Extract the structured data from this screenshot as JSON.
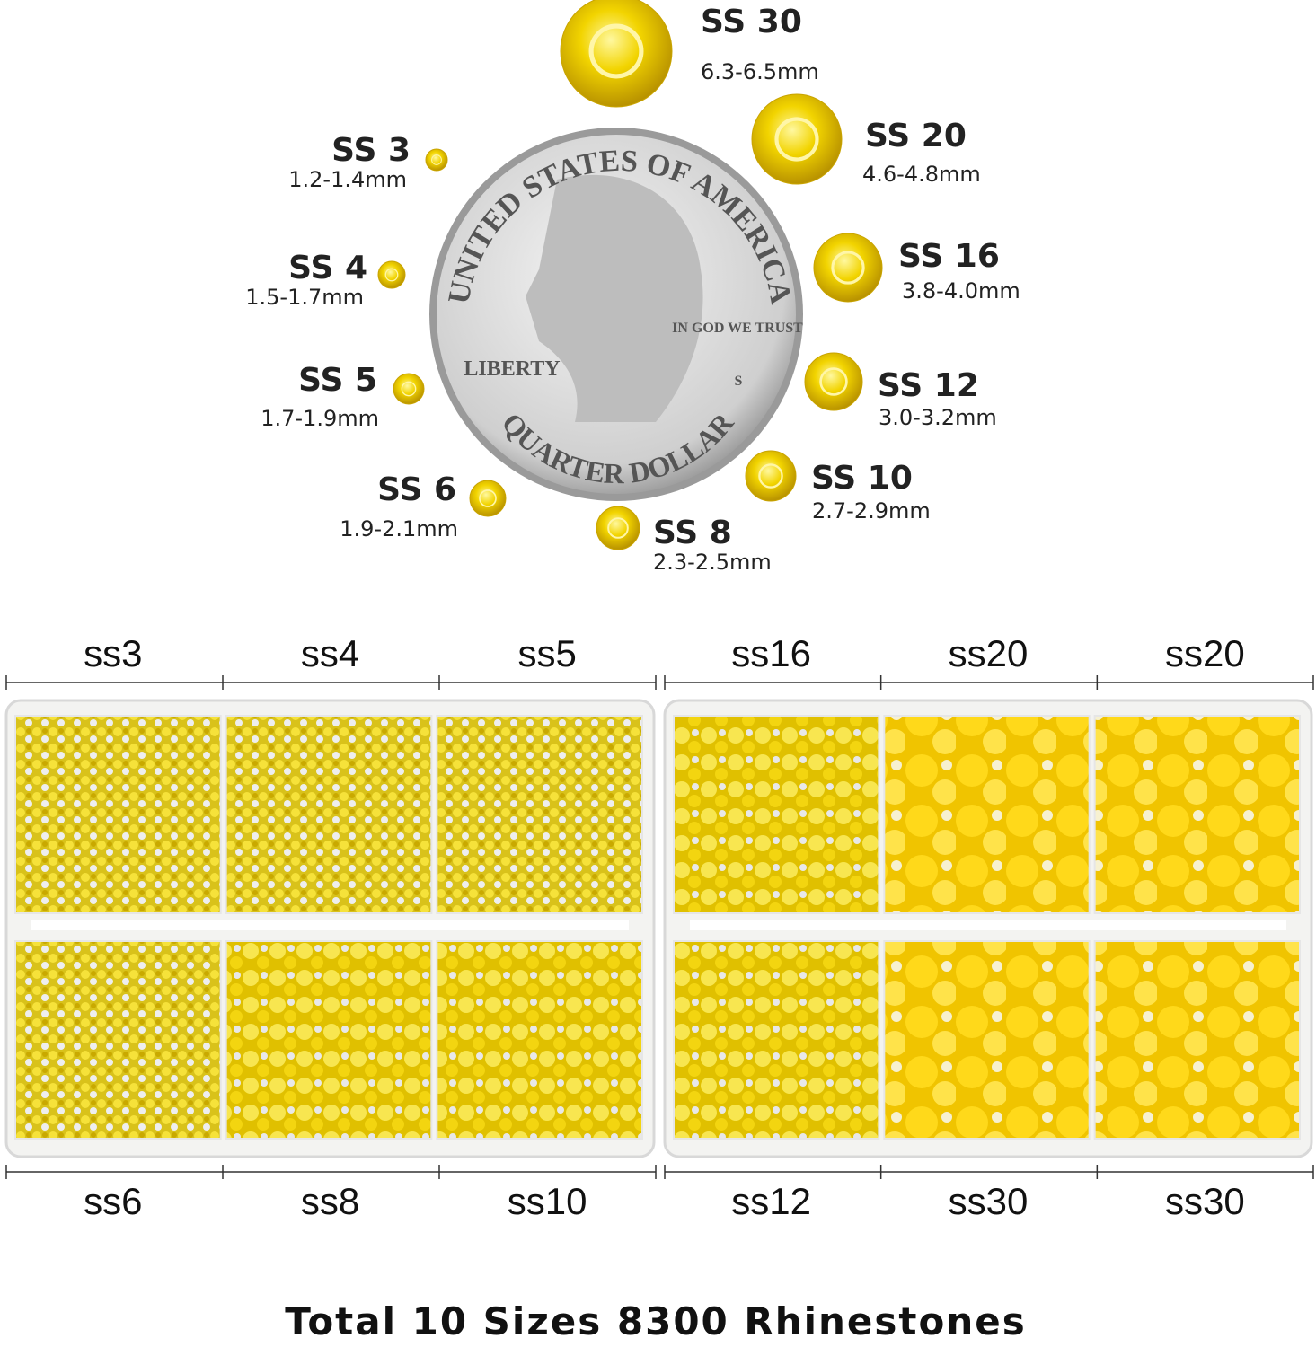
{
  "size_chart": {
    "items": [
      {
        "size": "SS 30",
        "mm": "6.3-6.5mm"
      },
      {
        "size": "SS 20",
        "mm": "4.6-4.8mm"
      },
      {
        "size": "SS 3",
        "mm": "1.2-1.4mm"
      },
      {
        "size": "SS 16",
        "mm": "3.8-4.0mm"
      },
      {
        "size": "SS 4",
        "mm": "1.5-1.7mm"
      },
      {
        "size": "SS 12",
        "mm": "3.0-3.2mm"
      },
      {
        "size": "SS 5",
        "mm": "1.7-1.9mm"
      },
      {
        "size": "SS 10",
        "mm": "2.7-2.9mm"
      },
      {
        "size": "SS 6",
        "mm": "1.9-2.1mm"
      },
      {
        "size": "SS 8",
        "mm": "2.3-2.5mm"
      }
    ],
    "coin": {
      "top": "UNITED STATES OF AMERICA",
      "motto": "IN GOD WE TRUST",
      "liberty": "LIBERTY",
      "bottom": "QUARTER DOLLAR",
      "mint": "S"
    }
  },
  "boxes": {
    "top_labels": [
      "ss3",
      "ss4",
      "ss5",
      "ss16",
      "ss20",
      "ss20"
    ],
    "bottom_labels": [
      "ss6",
      "ss8",
      "ss10",
      "ss12",
      "ss30",
      "ss30"
    ]
  },
  "footer": {
    "title": "Total 10 Sizes 8300 Rhinestones"
  }
}
